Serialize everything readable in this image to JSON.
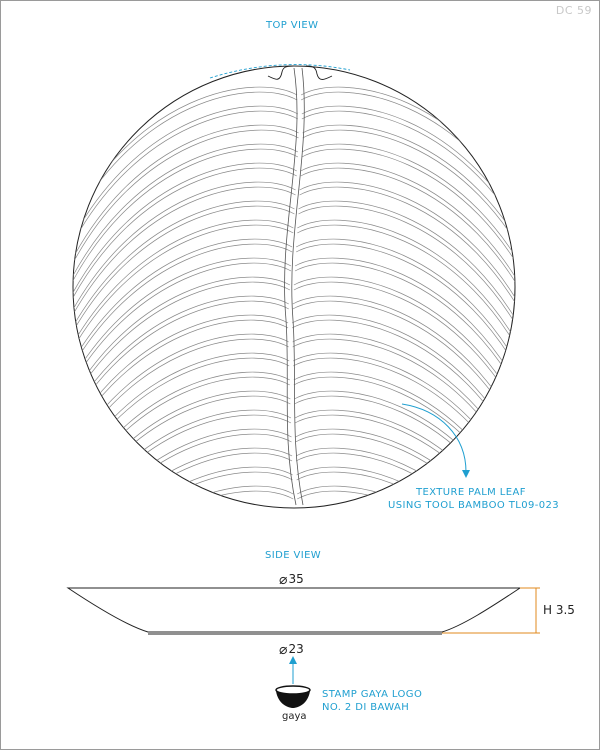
{
  "drawing_code": "DC 59",
  "top_view_label": "TOP VIEW",
  "side_view_label": "SIDE VIEW",
  "texture_note": {
    "line1": "TEXTURE PALM LEAF",
    "line2": "USING TOOL BAMBOO TL09-023"
  },
  "dimensions": {
    "top_diameter": "35",
    "bottom_diameter": "23",
    "height": "H 3.5"
  },
  "stamp_note": {
    "line1": "STAMP GAYA LOGO",
    "line2": "NO. 2 DI BAWAH"
  },
  "logo_text": "gaya",
  "colors": {
    "annotation": "#1f9fd0",
    "height_dimension": "#e08a1e",
    "outline": "#222222"
  }
}
